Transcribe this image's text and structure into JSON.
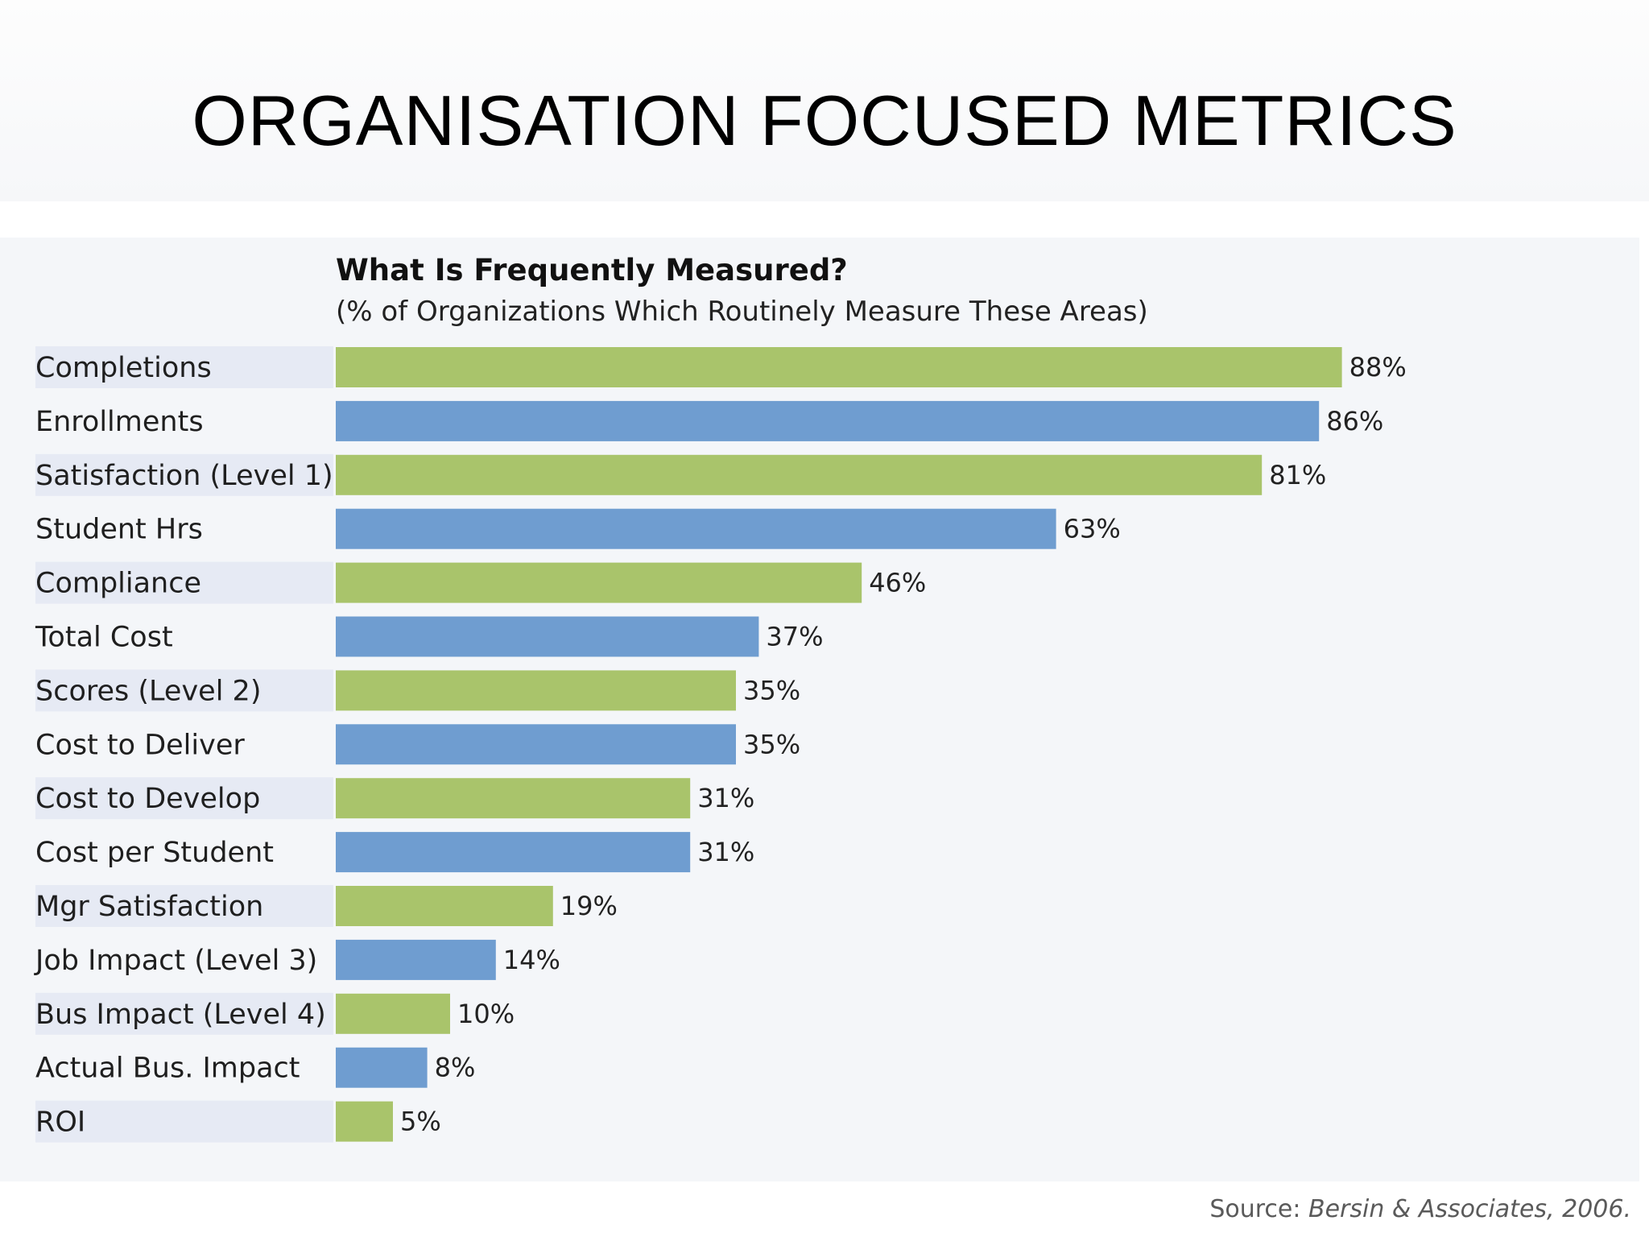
{
  "slide": {
    "title": "ORGANISATION FOCUSED METRICS"
  },
  "source": {
    "prefix": "Source: ",
    "citation": "Bersin & Associates, 2006."
  },
  "chart_data": {
    "type": "bar",
    "orientation": "horizontal",
    "title": "What Is Frequently Measured?",
    "subtitle": "(% of Organizations Which Routinely Measure These Areas)",
    "categories": [
      "Completions",
      "Enrollments",
      "Satisfaction (Level 1)",
      "Student Hrs",
      "Compliance",
      "Total Cost",
      "Scores (Level 2)",
      "Cost to Deliver",
      "Cost to Develop",
      "Cost per Student",
      "Mgr Satisfaction",
      "Job Impact (Level 3)",
      "Bus Impact (Level 4)",
      "Actual Bus. Impact",
      "ROI"
    ],
    "values": [
      88,
      86,
      81,
      63,
      46,
      37,
      35,
      35,
      31,
      31,
      19,
      14,
      10,
      8,
      5
    ],
    "value_labels": [
      "88%",
      "86%",
      "81%",
      "63%",
      "46%",
      "37%",
      "35%",
      "35%",
      "31%",
      "31%",
      "19%",
      "14%",
      "10%",
      "8%",
      "5%"
    ],
    "unit": "%",
    "xlim": [
      0,
      100
    ],
    "grid": false,
    "legend": "none",
    "colors": {
      "bar_alternate_a": "#a9c46b",
      "bar_alternate_b": "#6f9dd0",
      "label_band": "#e6eaf4"
    }
  }
}
